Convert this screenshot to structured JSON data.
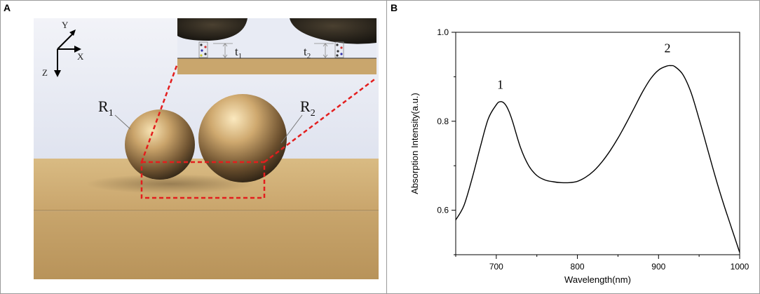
{
  "panels": {
    "a_label": "A",
    "b_label": "B"
  },
  "scene": {
    "axes": {
      "x": "X",
      "y": "Y",
      "z": "Z"
    },
    "sphere_labels": {
      "r1_base": "R",
      "r1_sub": "1",
      "r2_base": "R",
      "r2_sub": "2"
    },
    "gap_labels": {
      "t1_base": "t",
      "t1_sub": "1",
      "t2_base": "t",
      "t2_sub": "2"
    },
    "colors": {
      "wall": "#e6e9f4",
      "floor": "#d2b27a",
      "sphere": "#c9a36a",
      "highlight": "#e31e1e"
    }
  },
  "chart_data": {
    "type": "line",
    "xlabel": "Wavelength(nm)",
    "ylabel": "Absorption Intensity(a.u.)",
    "xlim": [
      650,
      1000
    ],
    "ylim": [
      0.5,
      1.0
    ],
    "x_ticks": [
      700,
      800,
      900,
      1000
    ],
    "y_ticks": [
      0.6,
      0.8,
      1.0
    ],
    "y_tick_labels": [
      "0.6",
      "0.8",
      "1.0"
    ],
    "grid": false,
    "series": [
      {
        "x": [
          650,
          660,
          670,
          680,
          690,
          700,
          705,
          710,
          715,
          720,
          730,
          740,
          750,
          760,
          770,
          780,
          790,
          800,
          810,
          820,
          830,
          840,
          850,
          860,
          870,
          880,
          890,
          900,
          910,
          915,
          920,
          930,
          940,
          950,
          960,
          970,
          980,
          990,
          1000
        ],
        "y": [
          0.578,
          0.61,
          0.67,
          0.74,
          0.805,
          0.837,
          0.844,
          0.84,
          0.825,
          0.8,
          0.74,
          0.7,
          0.678,
          0.668,
          0.664,
          0.662,
          0.662,
          0.665,
          0.674,
          0.688,
          0.708,
          0.733,
          0.762,
          0.795,
          0.83,
          0.865,
          0.895,
          0.915,
          0.924,
          0.925,
          0.923,
          0.905,
          0.865,
          0.805,
          0.74,
          0.675,
          0.615,
          0.56,
          0.505
        ]
      }
    ],
    "annotations": [
      {
        "text": "1",
        "x": 705,
        "y": 0.873
      },
      {
        "text": "2",
        "x": 911,
        "y": 0.955
      }
    ]
  }
}
